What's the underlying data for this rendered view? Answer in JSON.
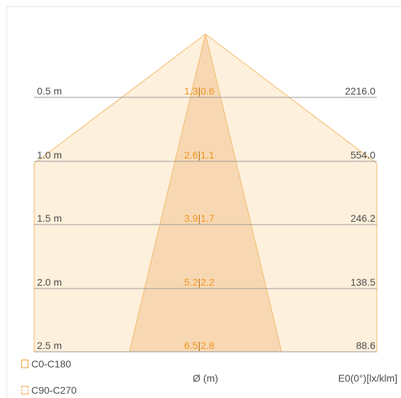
{
  "rows": [
    {
      "distance": "0.5 m",
      "diameter_c0": "1.3",
      "diameter_c90": "0.6",
      "e0": "2216.0"
    },
    {
      "distance": "1.0 m",
      "diameter_c0": "2.6",
      "diameter_c90": "1.1",
      "e0": "554.0"
    },
    {
      "distance": "1.5 m",
      "diameter_c0": "3.9",
      "diameter_c90": "1.7",
      "e0": "246.2"
    },
    {
      "distance": "2.0 m",
      "diameter_c0": "5.2",
      "diameter_c90": "2.2",
      "e0": "138.5"
    },
    {
      "distance": "2.5 m",
      "diameter_c0": "6.5",
      "diameter_c90": "2.8",
      "e0": "88.6"
    }
  ],
  "separator": "|",
  "legend": {
    "c0_c180": "C0-C180",
    "c90_c270": "C90-C270"
  },
  "footer": {
    "diameter_label": "Ø (m)",
    "e0_label": "E0(0°)[lx/klm]"
  },
  "colors": {
    "beam_wide_fill": "#fdf0dc",
    "beam_narrow_fill": "#f6d3ab",
    "beam_stroke": "#f3b869",
    "diameter_text": "#f0961e",
    "gridline": "#9a9a9a",
    "text": "#4d4d4d"
  }
}
